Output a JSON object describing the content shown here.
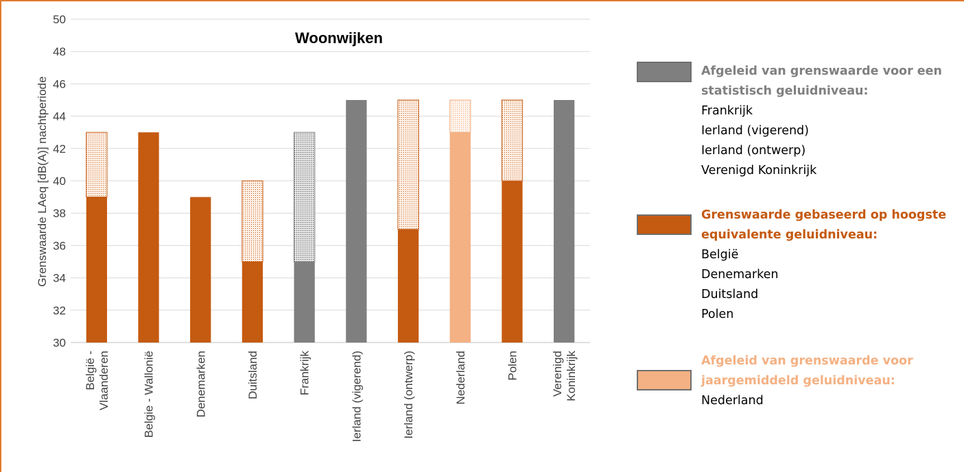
{
  "chart_data": {
    "type": "bar",
    "title": "Woonwijken",
    "ylabel": "Grenswaarde LAeq [dB(A)] nachtperiode",
    "ylim": [
      30,
      50
    ],
    "yticks": [
      30,
      32,
      34,
      36,
      38,
      40,
      42,
      44,
      46,
      48,
      50
    ],
    "categories": [
      [
        "België -",
        "Vlaanderen"
      ],
      [
        "Belgie - Wallonië"
      ],
      [
        "Denemarken"
      ],
      [
        "Duitsland"
      ],
      [
        "Frankrijk"
      ],
      [
        "Ierland (vigerend)"
      ],
      [
        "Ierland (ontwerp)"
      ],
      [
        "Nederland"
      ],
      [
        "Polen"
      ],
      [
        "Verenigd",
        "Koninkrijk"
      ]
    ],
    "series": [
      {
        "values": [
          39,
          43,
          39,
          35,
          35,
          45,
          37,
          43,
          40,
          45
        ],
        "colors": [
          "#C55A11",
          "#C55A11",
          "#C55A11",
          "#C55A11",
          "#7F7F7F",
          "#7F7F7F",
          "#C55A11",
          "#F4B183",
          "#C55A11",
          "#7F7F7F"
        ]
      },
      {
        "values": [
          4,
          0,
          0,
          5,
          8,
          0,
          8,
          2,
          5,
          0
        ],
        "pattern": "dotted",
        "colors": [
          "#C55A11",
          "#C55A11",
          "#C55A11",
          "#C55A11",
          "#7F7F7F",
          "#7F7F7F",
          "#C55A11",
          "#F4B183",
          "#C55A11",
          "#7F7F7F"
        ]
      }
    ],
    "grid": true,
    "legend": "right"
  },
  "legend": {
    "groups": [
      {
        "title": [
          "Afgeleid van grenswaarde voor een",
          "statistisch geluidniveau:"
        ],
        "items": [
          "Frankrijk",
          "Ierland (vigerend)",
          "Ierland (ontwerp)",
          "Verenigd Koninkrijk"
        ],
        "color": "#7F7F7F",
        "title_color": "#808080"
      },
      {
        "title": [
          "Grenswaarde gebaseerd op hoogste",
          "equivalente geluidniveau:"
        ],
        "items": [
          "België",
          "Denemarken",
          "Duitsland",
          "Polen"
        ],
        "color": "#C55A11",
        "title_color": "#C55A11"
      },
      {
        "title": [
          "Afgeleid van grenswaarde voor",
          "jaargemiddeld geluidniveau:"
        ],
        "items": [
          "Nederland"
        ],
        "color": "#F4B183",
        "title_color": "#F4B183"
      }
    ]
  }
}
